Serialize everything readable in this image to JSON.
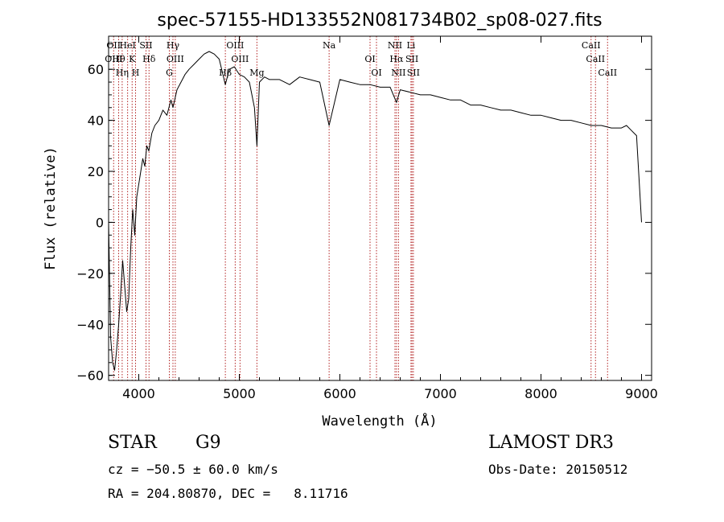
{
  "chart_data": {
    "type": "line",
    "title": "spec-57155-HD133552N081734B02_sp08-027.fits",
    "xlabel": "Wavelength (Å)",
    "ylabel": "Flux (relative)",
    "xlim": [
      3700,
      9100
    ],
    "ylim": [
      -62,
      73
    ],
    "xticks": [
      4000,
      5000,
      6000,
      7000,
      8000,
      9000
    ],
    "yticks": [
      -60,
      -40,
      -20,
      0,
      20,
      40,
      60
    ],
    "grid": false,
    "line_color": "#000000",
    "marker_color": "#b22222",
    "series": [
      {
        "x": [
          3700,
          3720,
          3740,
          3760,
          3780,
          3800,
          3820,
          3840,
          3860,
          3880,
          3900,
          3920,
          3940,
          3960,
          3980,
          4000,
          4020,
          4040,
          4060,
          4080,
          4100,
          4130,
          4160,
          4200,
          4240,
          4280,
          4320,
          4340,
          4380,
          4420,
          4460,
          4500,
          4550,
          4600,
          4650,
          4700,
          4750,
          4800,
          4861,
          4900,
          4950,
          5000,
          5050,
          5100,
          5150,
          5175,
          5200,
          5250,
          5300,
          5400,
          5500,
          5600,
          5700,
          5800,
          5893,
          6000,
          6100,
          6200,
          6300,
          6400,
          6500,
          6563,
          6600,
          6700,
          6800,
          6900,
          7000,
          7100,
          7200,
          7300,
          7400,
          7500,
          7600,
          7700,
          7800,
          7900,
          8000,
          8100,
          8200,
          8300,
          8400,
          8500,
          8600,
          8700,
          8800,
          8850,
          8900,
          8950,
          9000
        ],
        "y": [
          0,
          -45,
          -55,
          -58,
          -50,
          -40,
          -28,
          -15,
          -25,
          -35,
          -30,
          -10,
          5,
          -5,
          10,
          15,
          20,
          25,
          22,
          30,
          28,
          35,
          38,
          40,
          44,
          42,
          48,
          45,
          52,
          55,
          58,
          60,
          62,
          64,
          66,
          67,
          66,
          64,
          54,
          60,
          61,
          58,
          57,
          55,
          45,
          30,
          55,
          57,
          56,
          56,
          54,
          57,
          56,
          55,
          38,
          56,
          55,
          54,
          54,
          53,
          53,
          47,
          52,
          51,
          50,
          50,
          49,
          48,
          48,
          46,
          46,
          45,
          44,
          44,
          43,
          42,
          42,
          41,
          40,
          40,
          39,
          38,
          38,
          37,
          37,
          38,
          36,
          34,
          0
        ]
      }
    ],
    "lines": [
      {
        "x": 3750,
        "labels": [
          "OII",
          "OIII"
        ]
      },
      {
        "x": 3800,
        "labels": [
          "Hθ"
        ]
      },
      {
        "x": 3835,
        "labels": [
          "Hη"
        ]
      },
      {
        "x": 3889,
        "labels": [
          "HeI"
        ]
      },
      {
        "x": 3934,
        "labels": [
          "K"
        ]
      },
      {
        "x": 3968,
        "labels": [
          "H"
        ]
      },
      {
        "x": 4072,
        "labels": [
          "SII"
        ]
      },
      {
        "x": 4102,
        "labels": [
          "Hδ"
        ]
      },
      {
        "x": 4304,
        "labels": [
          "G"
        ]
      },
      {
        "x": 4340,
        "labels": [
          "Hγ"
        ]
      },
      {
        "x": 4363,
        "labels": [
          "OIII"
        ]
      },
      {
        "x": 4861,
        "labels": [
          "Hβ"
        ]
      },
      {
        "x": 4959,
        "labels": [
          "OIII"
        ]
      },
      {
        "x": 5007,
        "labels": [
          "OIII"
        ]
      },
      {
        "x": 5175,
        "labels": [
          "Mg"
        ]
      },
      {
        "x": 5893,
        "labels": [
          "Na"
        ]
      },
      {
        "x": 6300,
        "labels": [
          "OI"
        ]
      },
      {
        "x": 6364,
        "labels": [
          "OI"
        ]
      },
      {
        "x": 6548,
        "labels": [
          "NII"
        ]
      },
      {
        "x": 6563,
        "labels": [
          "Hα"
        ]
      },
      {
        "x": 6583,
        "labels": [
          "NII"
        ]
      },
      {
        "x": 6707,
        "labels": [
          "Li"
        ]
      },
      {
        "x": 6717,
        "labels": [
          "SII"
        ]
      },
      {
        "x": 6731,
        "labels": [
          "SII"
        ]
      },
      {
        "x": 8498,
        "labels": [
          "CaII"
        ]
      },
      {
        "x": 8542,
        "labels": [
          "CaII"
        ]
      },
      {
        "x": 8662,
        "labels": [
          "CaII"
        ]
      }
    ]
  },
  "info": {
    "class": "STAR",
    "subclass": "G9",
    "survey": "LAMOST DR3",
    "cz": "cz = −50.5 ± 60.0 km/s",
    "obs_date": "Obs-Date: 20150512",
    "coords": "RA = 204.80870, DEC =   8.11716"
  }
}
